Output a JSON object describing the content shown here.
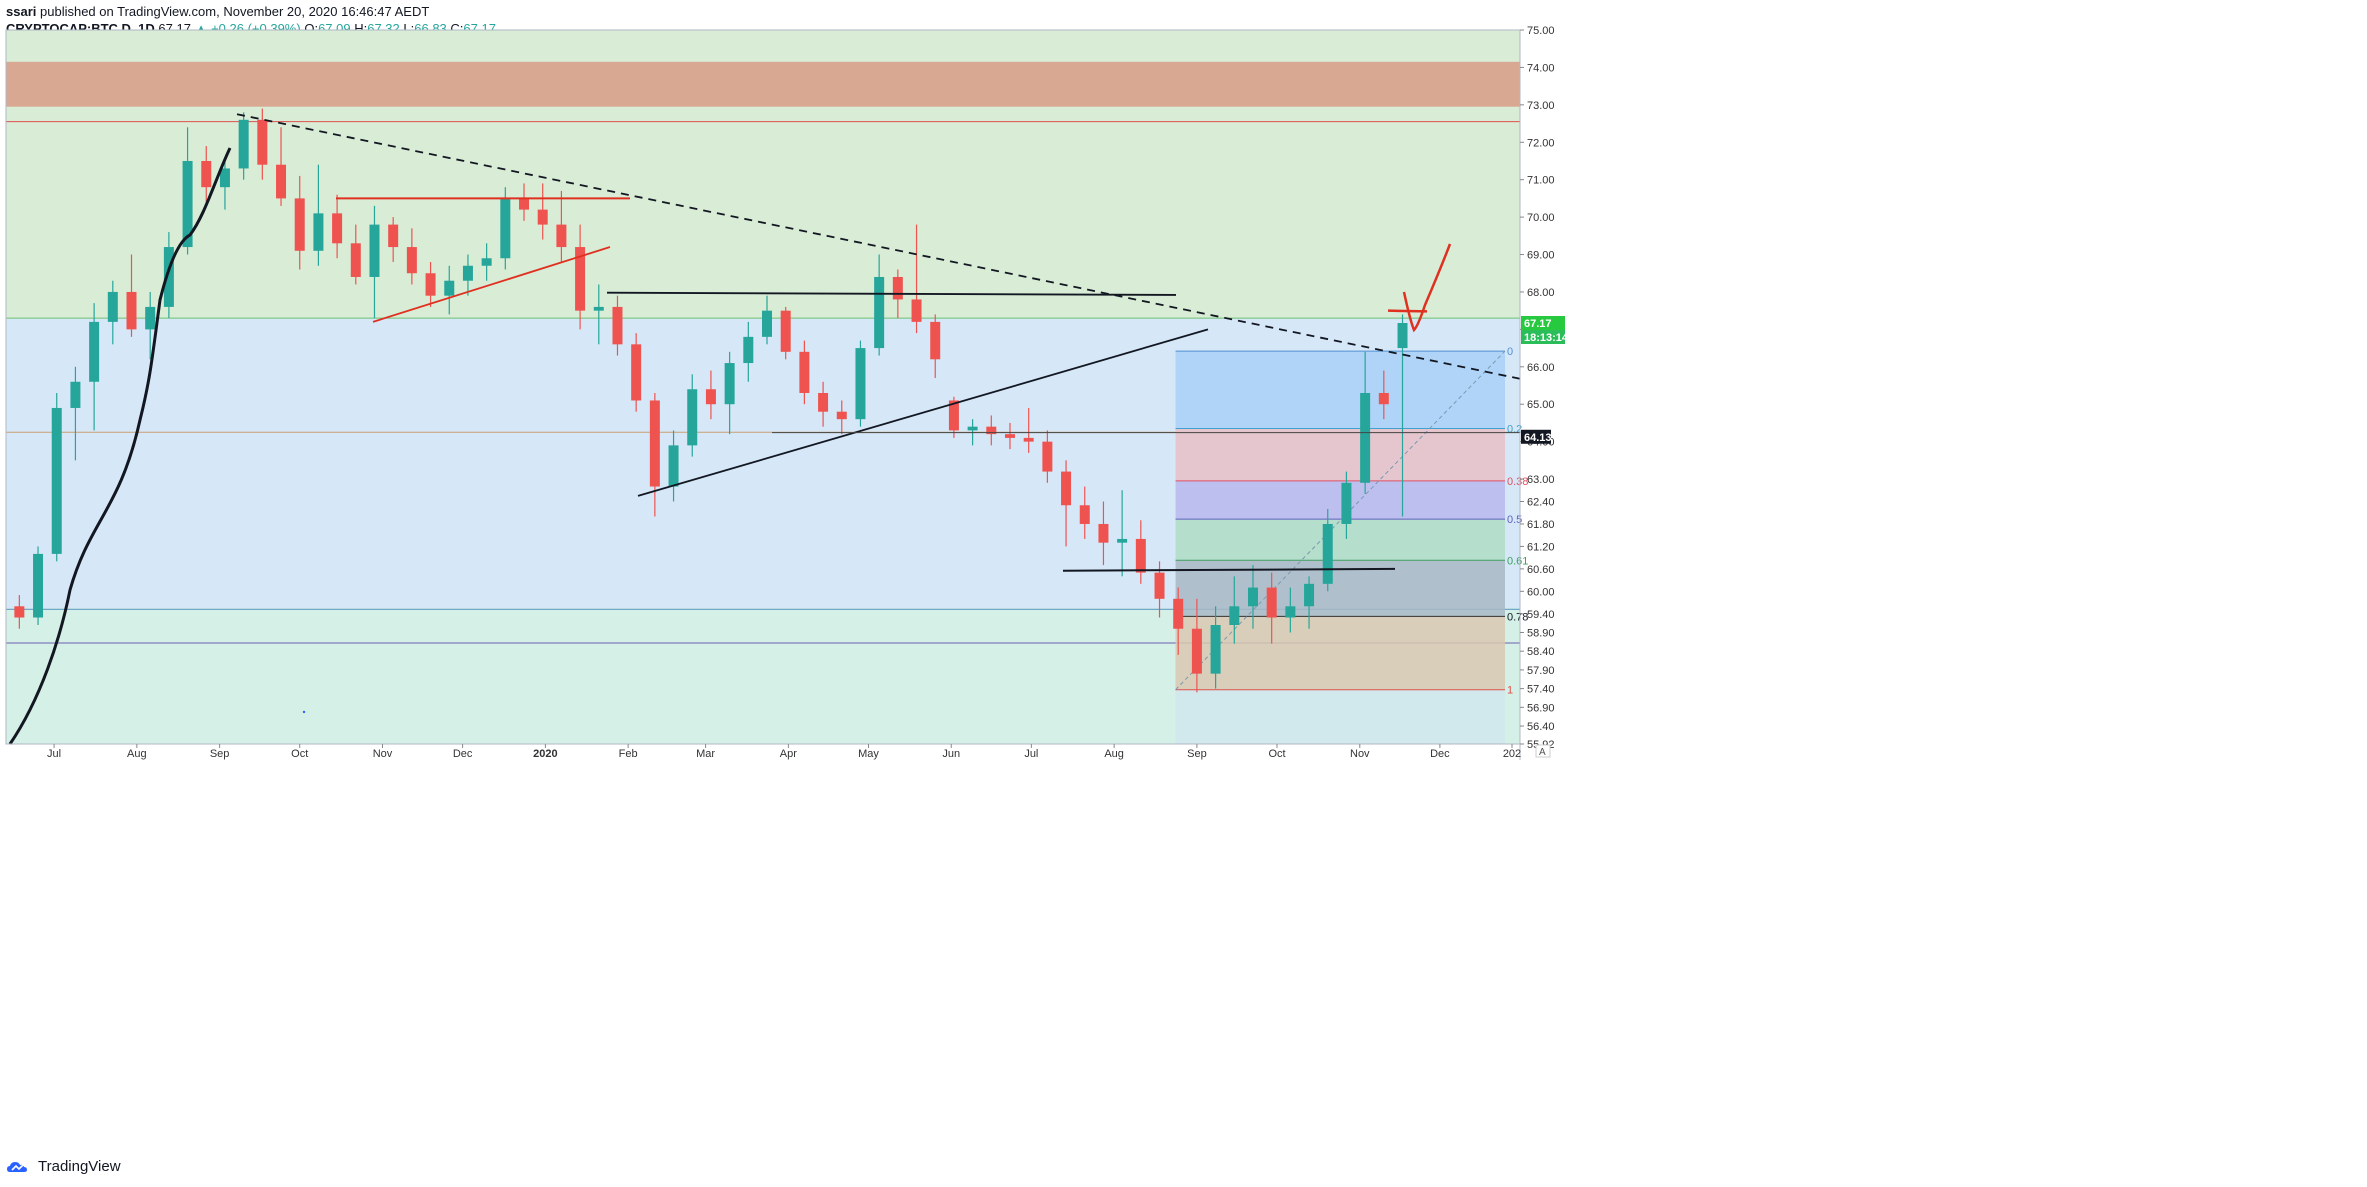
{
  "header": {
    "author": "ssari",
    "published_text": "published on TradingView.com, November 20, 2020 16:46:47 AEDT",
    "symbol": "CRYPTOCAP:BTC.D, 1D",
    "last": "67.17",
    "change": "▲ +0.26 (+0.39%)",
    "o_label": "O:",
    "o_value": "67.09",
    "h_label": "H:",
    "h_value": "67.32",
    "l_label": "L:",
    "l_value": "66.83",
    "c_label": "C:",
    "c_value": "67.17"
  },
  "branding": {
    "logo_text": "TradingView"
  },
  "colors": {
    "up": "#26a69a",
    "down": "#ef5350",
    "zone_green": "#d8ecd6",
    "zone_blue": "#d6e8f8",
    "zone_teal": "#d5f0e6",
    "zone_red": "#d9a893",
    "trend_red": "#e03020",
    "trend_black": "#131722"
  },
  "chart_data": {
    "type": "candlestick",
    "symbol": "CRYPTOCAP:BTC.D",
    "interval": "1D",
    "x_tick_labels": [
      "Jul",
      "Aug",
      "Sep",
      "Oct",
      "Nov",
      "Dec",
      "2020",
      "Feb",
      "Mar",
      "Apr",
      "May",
      "Jun",
      "Jul",
      "Aug",
      "Sep",
      "Oct",
      "Nov",
      "Dec",
      "202"
    ],
    "y_tick_labels": [
      "75.00",
      "74.00",
      "73.00",
      "72.00",
      "71.00",
      "70.00",
      "69.00",
      "68.00",
      "67.00",
      "66.00",
      "65.00",
      "64.00",
      "63.00",
      "62.40",
      "61.80",
      "61.20",
      "60.60",
      "60.00",
      "59.40",
      "58.90",
      "58.40",
      "57.90",
      "57.40",
      "56.90",
      "56.40",
      "55.92"
    ],
    "ylim": [
      55.92,
      75.0
    ],
    "last_price_label": "67.17",
    "countdown_label": "18:13:14",
    "crosshair_price_label": "64.13",
    "fib_labels": [
      "0",
      "0.2",
      "0.38",
      "0.5",
      "0.61",
      "0.78",
      "1"
    ],
    "fib_levels": [
      66.42,
      64.35,
      62.95,
      61.93,
      60.83,
      59.33,
      57.37
    ],
    "zones": [
      {
        "from": 67.3,
        "to": 75.0,
        "color": "green"
      },
      {
        "from": 72.95,
        "to": 74.15,
        "color": "red"
      },
      {
        "from": 59.55,
        "to": 67.3,
        "color": "blue"
      },
      {
        "from": 55.92,
        "to": 59.55,
        "color": "teal"
      }
    ],
    "horizontal_levels": [
      72.55,
      64.25,
      59.52,
      58.62
    ],
    "candles": [
      [
        "2019-06-18",
        59.6,
        59.9,
        59.0,
        59.3
      ],
      [
        "2019-06-25",
        59.3,
        61.2,
        59.1,
        61.0
      ],
      [
        "2019-07-02",
        61.0,
        65.3,
        60.8,
        64.9
      ],
      [
        "2019-07-09",
        64.9,
        66.0,
        63.5,
        65.6
      ],
      [
        "2019-07-16",
        65.6,
        67.7,
        64.3,
        67.2
      ],
      [
        "2019-07-23",
        67.2,
        68.3,
        66.6,
        68.0
      ],
      [
        "2019-07-30",
        68.0,
        69.0,
        66.8,
        67.0
      ],
      [
        "2019-08-06",
        67.0,
        68.0,
        66.2,
        67.6
      ],
      [
        "2019-08-13",
        67.6,
        69.6,
        67.3,
        69.2
      ],
      [
        "2019-08-20",
        69.2,
        72.4,
        69.0,
        71.5
      ],
      [
        "2019-08-27",
        71.5,
        71.9,
        70.3,
        70.8
      ],
      [
        "2019-09-03",
        70.8,
        71.6,
        70.2,
        71.3
      ],
      [
        "2019-09-10",
        71.3,
        72.8,
        71.0,
        72.6
      ],
      [
        "2019-09-17",
        72.6,
        72.9,
        71.0,
        71.4
      ],
      [
        "2019-09-24",
        71.4,
        72.4,
        70.3,
        70.5
      ],
      [
        "2019-10-01",
        70.5,
        71.1,
        68.6,
        69.1
      ],
      [
        "2019-10-08",
        69.1,
        71.4,
        68.7,
        70.1
      ],
      [
        "2019-10-15",
        70.1,
        70.6,
        68.9,
        69.3
      ],
      [
        "2019-10-22",
        69.3,
        69.8,
        68.2,
        68.4
      ],
      [
        "2019-10-29",
        68.4,
        70.3,
        67.3,
        69.8
      ],
      [
        "2019-11-05",
        69.8,
        70.0,
        68.8,
        69.2
      ],
      [
        "2019-11-12",
        69.2,
        69.7,
        68.2,
        68.5
      ],
      [
        "2019-11-19",
        68.5,
        68.8,
        67.6,
        67.9
      ],
      [
        "2019-11-26",
        67.9,
        68.7,
        67.4,
        68.3
      ],
      [
        "2019-12-03",
        68.3,
        69.0,
        67.9,
        68.7
      ],
      [
        "2019-12-10",
        68.7,
        69.3,
        68.3,
        68.9
      ],
      [
        "2019-12-17",
        68.9,
        70.8,
        68.6,
        70.5
      ],
      [
        "2019-12-24",
        70.5,
        70.9,
        69.9,
        70.2
      ],
      [
        "2019-12-31",
        70.2,
        70.9,
        69.4,
        69.8
      ],
      [
        "2020-01-07",
        69.8,
        70.7,
        68.8,
        69.2
      ],
      [
        "2020-01-14",
        69.2,
        69.8,
        67.0,
        67.5
      ],
      [
        "2020-01-21",
        67.5,
        68.2,
        66.6,
        67.6
      ],
      [
        "2020-01-28",
        67.6,
        67.9,
        66.3,
        66.6
      ],
      [
        "2020-02-04",
        66.6,
        66.9,
        64.8,
        65.1
      ],
      [
        "2020-02-11",
        65.1,
        65.3,
        62.0,
        62.8
      ],
      [
        "2020-02-18",
        62.8,
        64.3,
        62.4,
        63.9
      ],
      [
        "2020-02-25",
        63.9,
        65.8,
        63.6,
        65.4
      ],
      [
        "2020-03-03",
        65.4,
        65.9,
        64.6,
        65.0
      ],
      [
        "2020-03-10",
        65.0,
        66.4,
        64.2,
        66.1
      ],
      [
        "2020-03-17",
        66.1,
        67.2,
        65.6,
        66.8
      ],
      [
        "2020-03-24",
        66.8,
        67.9,
        66.6,
        67.5
      ],
      [
        "2020-03-31",
        67.5,
        67.6,
        66.2,
        66.4
      ],
      [
        "2020-04-07",
        66.4,
        66.7,
        65.0,
        65.3
      ],
      [
        "2020-04-14",
        65.3,
        65.6,
        64.4,
        64.8
      ],
      [
        "2020-04-21",
        64.8,
        65.1,
        64.2,
        64.6
      ],
      [
        "2020-04-28",
        64.6,
        66.7,
        64.4,
        66.5
      ],
      [
        "2020-05-05",
        66.5,
        69.0,
        66.3,
        68.4
      ],
      [
        "2020-05-12",
        68.4,
        68.6,
        67.3,
        67.8
      ],
      [
        "2020-05-19",
        67.8,
        69.8,
        66.9,
        67.2
      ],
      [
        "2020-05-26",
        67.2,
        67.4,
        65.7,
        66.2
      ],
      [
        "2020-06-02",
        65.1,
        65.2,
        64.1,
        64.3
      ],
      [
        "2020-06-09",
        64.3,
        64.6,
        63.9,
        64.4
      ],
      [
        "2020-06-16",
        64.4,
        64.7,
        63.9,
        64.2
      ],
      [
        "2020-06-23",
        64.2,
        64.5,
        63.8,
        64.1
      ],
      [
        "2020-06-30",
        64.1,
        64.9,
        63.7,
        64.0
      ],
      [
        "2020-07-07",
        64.0,
        64.3,
        62.9,
        63.2
      ],
      [
        "2020-07-14",
        63.2,
        63.5,
        61.2,
        62.3
      ],
      [
        "2020-07-21",
        62.3,
        62.8,
        61.4,
        61.8
      ],
      [
        "2020-07-28",
        61.8,
        62.4,
        60.7,
        61.3
      ],
      [
        "2020-08-04",
        61.3,
        62.7,
        60.4,
        61.4
      ],
      [
        "2020-08-11",
        61.4,
        61.9,
        60.2,
        60.5
      ],
      [
        "2020-08-18",
        60.5,
        60.8,
        59.3,
        59.8
      ],
      [
        "2020-08-25",
        59.8,
        60.1,
        58.3,
        59.0
      ],
      [
        "2020-09-01",
        59.0,
        59.8,
        57.3,
        57.8
      ],
      [
        "2020-09-08",
        57.8,
        59.6,
        57.4,
        59.1
      ],
      [
        "2020-09-15",
        59.1,
        60.4,
        58.6,
        59.6
      ],
      [
        "2020-09-22",
        59.6,
        60.7,
        59.0,
        60.1
      ],
      [
        "2020-09-29",
        60.1,
        60.5,
        58.6,
        59.3
      ],
      [
        "2020-10-06",
        59.3,
        60.1,
        58.9,
        59.6
      ],
      [
        "2020-10-13",
        59.6,
        60.4,
        59.0,
        60.2
      ],
      [
        "2020-10-20",
        60.2,
        62.2,
        60.0,
        61.8
      ],
      [
        "2020-10-27",
        61.8,
        63.2,
        61.4,
        62.9
      ],
      [
        "2020-11-03",
        62.9,
        66.4,
        62.6,
        65.3
      ],
      [
        "2020-11-10",
        65.3,
        65.9,
        64.6,
        65.0
      ],
      [
        "2020-11-17",
        66.5,
        67.4,
        62.0,
        67.17
      ]
    ],
    "overlays": [
      {
        "type": "moving_average",
        "color": "black"
      },
      {
        "type": "trendline",
        "style": "dashed",
        "color": "black"
      },
      {
        "type": "trendline",
        "style": "solid",
        "color": "red"
      },
      {
        "type": "trendline",
        "style": "solid",
        "color": "black"
      },
      {
        "type": "fib_retracement"
      },
      {
        "type": "hand_drawn_arrow",
        "color": "red"
      }
    ]
  }
}
